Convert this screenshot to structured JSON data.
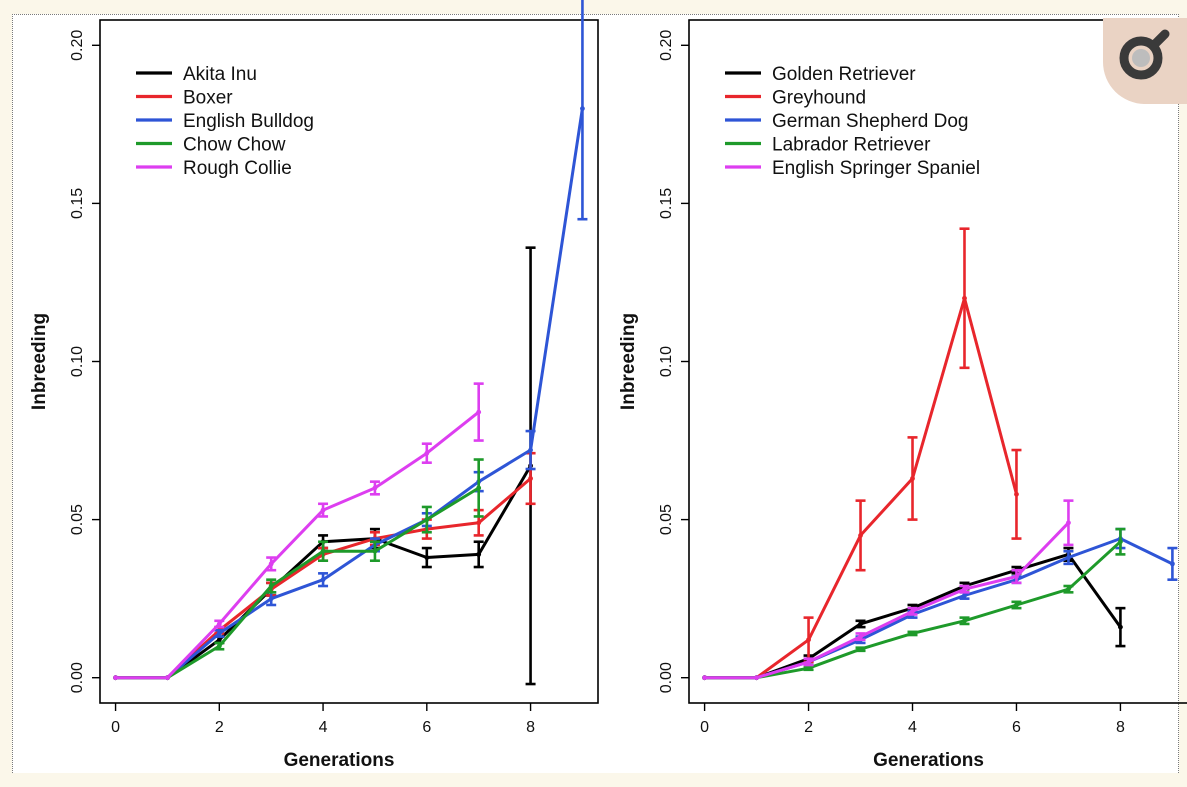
{
  "chart_data": [
    {
      "type": "line",
      "xlabel": "Generations",
      "ylabel": "Inbreeding",
      "xlim": [
        -0.3,
        9.3
      ],
      "ylim": [
        -0.008,
        0.208
      ],
      "xticks": [
        "0",
        "2",
        "4",
        "6",
        "8"
      ],
      "yticks": [
        "0.00",
        "0.05",
        "0.10",
        "0.15",
        "0.20"
      ],
      "legend_position": "top-left",
      "series": [
        {
          "name": "Akita Inu",
          "color": "#000000",
          "x": [
            0,
            1,
            2,
            3,
            4,
            5,
            6,
            7,
            8
          ],
          "y": [
            0.0,
            0.0,
            0.012,
            0.028,
            0.043,
            0.044,
            0.038,
            0.039,
            0.067
          ],
          "err": [
            0,
            0,
            0.001,
            0.002,
            0.002,
            0.003,
            0.003,
            0.004,
            0.069
          ]
        },
        {
          "name": "Boxer",
          "color": "#e8262c",
          "x": [
            0,
            1,
            2,
            3,
            4,
            5,
            6,
            7,
            8
          ],
          "y": [
            0.0,
            0.0,
            0.015,
            0.028,
            0.039,
            0.044,
            0.047,
            0.049,
            0.063
          ],
          "err": [
            0,
            0,
            0.001,
            0.002,
            0.002,
            0.002,
            0.003,
            0.004,
            0.008
          ]
        },
        {
          "name": "English Bulldog",
          "color": "#2e55d6",
          "x": [
            0,
            1,
            2,
            3,
            4,
            5,
            6,
            7,
            8,
            9
          ],
          "y": [
            0.0,
            0.0,
            0.014,
            0.025,
            0.031,
            0.042,
            0.05,
            0.062,
            0.072,
            0.18
          ],
          "err": [
            0,
            0,
            0.001,
            0.002,
            0.002,
            0.002,
            0.002,
            0.003,
            0.006,
            0.035
          ]
        },
        {
          "name": "Chow Chow",
          "color": "#1e9a2a",
          "x": [
            0,
            1,
            2,
            3,
            4,
            5,
            6,
            7
          ],
          "y": [
            0.0,
            0.0,
            0.01,
            0.029,
            0.04,
            0.04,
            0.05,
            0.06
          ],
          "err": [
            0,
            0,
            0.001,
            0.002,
            0.003,
            0.003,
            0.004,
            0.009
          ]
        },
        {
          "name": "Rough Collie",
          "color": "#dd3ef0",
          "x": [
            0,
            1,
            2,
            3,
            4,
            5,
            6,
            7
          ],
          "y": [
            0.0,
            0.0,
            0.017,
            0.036,
            0.053,
            0.06,
            0.071,
            0.084
          ],
          "err": [
            0,
            0,
            0.001,
            0.002,
            0.002,
            0.002,
            0.003,
            0.009
          ]
        }
      ]
    },
    {
      "type": "line",
      "xlabel": "Generations",
      "ylabel": "Inbreeding",
      "xlim": [
        -0.3,
        9.3
      ],
      "ylim": [
        -0.008,
        0.208
      ],
      "xticks": [
        "0",
        "2",
        "4",
        "6",
        "8"
      ],
      "yticks": [
        "0.00",
        "0.05",
        "0.10",
        "0.15",
        "0.20"
      ],
      "legend_position": "top-left",
      "series": [
        {
          "name": "Golden Retriever",
          "color": "#000000",
          "x": [
            0,
            1,
            2,
            3,
            4,
            5,
            6,
            7,
            8
          ],
          "y": [
            0.0,
            0.0,
            0.006,
            0.017,
            0.022,
            0.029,
            0.034,
            0.039,
            0.016
          ],
          "err": [
            0,
            0,
            0.001,
            0.001,
            0.001,
            0.001,
            0.001,
            0.002,
            0.006
          ]
        },
        {
          "name": "Greyhound",
          "color": "#e8262c",
          "x": [
            0,
            1,
            2,
            3,
            4,
            5,
            6
          ],
          "y": [
            0.0,
            0.0,
            0.012,
            0.045,
            0.063,
            0.12,
            0.058
          ],
          "err": [
            0,
            0,
            0.007,
            0.011,
            0.013,
            0.022,
            0.014
          ]
        },
        {
          "name": "German Shepherd Dog",
          "color": "#2e55d6",
          "x": [
            0,
            1,
            2,
            3,
            4,
            5,
            6,
            7,
            8,
            9
          ],
          "y": [
            0.0,
            0.0,
            0.005,
            0.012,
            0.02,
            0.026,
            0.031,
            0.038,
            0.044,
            0.036
          ],
          "err": [
            0,
            0,
            0.001,
            0.001,
            0.001,
            0.001,
            0.001,
            0.002,
            0.003,
            0.005
          ]
        },
        {
          "name": "Labrador Retriever",
          "color": "#1e9a2a",
          "x": [
            0,
            1,
            2,
            3,
            4,
            5,
            6,
            7,
            8
          ],
          "y": [
            0.0,
            0.0,
            0.003,
            0.009,
            0.014,
            0.018,
            0.023,
            0.028,
            0.043
          ],
          "err": [
            0,
            0,
            0.0005,
            0.0005,
            0.0005,
            0.001,
            0.001,
            0.001,
            0.004
          ]
        },
        {
          "name": "English Springer Spaniel",
          "color": "#dd3ef0",
          "x": [
            0,
            1,
            2,
            3,
            4,
            5,
            6,
            7
          ],
          "y": [
            0.0,
            0.0,
            0.005,
            0.013,
            0.021,
            0.028,
            0.032,
            0.049
          ],
          "err": [
            0,
            0,
            0.001,
            0.001,
            0.001,
            0.001,
            0.002,
            0.007
          ]
        }
      ]
    }
  ],
  "icon": {
    "name": "magnifier-icon",
    "bg": "#ead3c4",
    "ring": "#3a3a3a"
  }
}
